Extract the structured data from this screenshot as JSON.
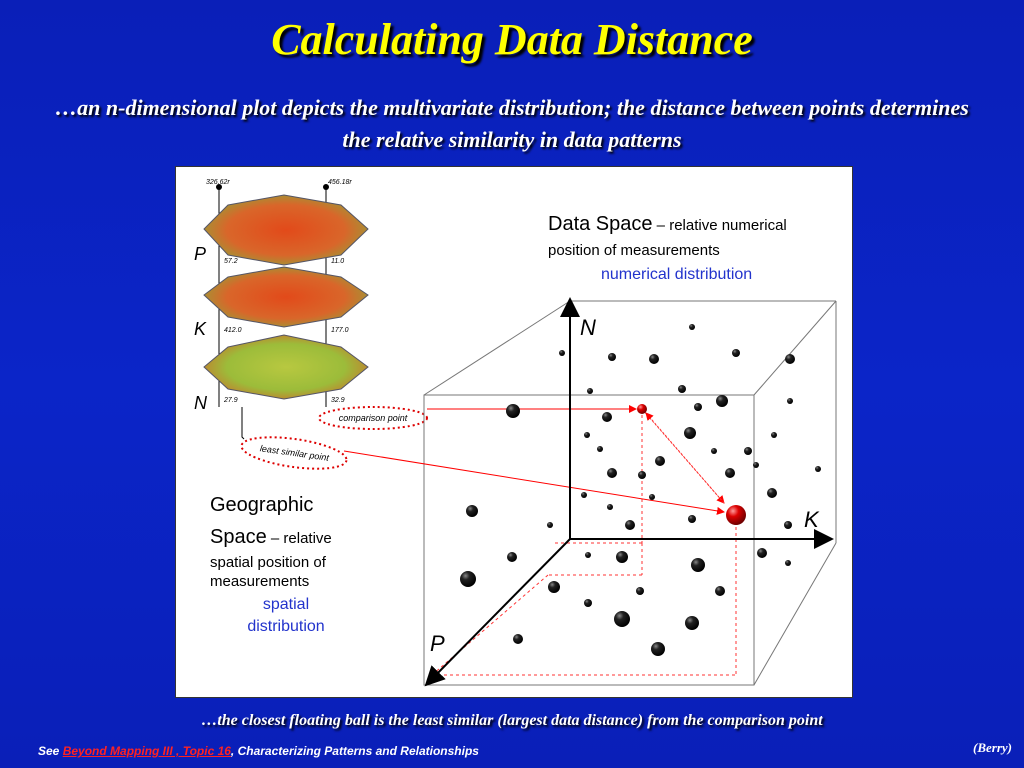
{
  "title": "Calculating Data Distance",
  "subtitle": "…an n-dimensional plot depicts the multivariate distribution; the distance between points determines the relative similarity in data patterns",
  "diagram": {
    "data_space_heading": "Data Space",
    "data_space_desc_1": " – relative numerical",
    "data_space_desc_2": "position of measurements",
    "numerical_distribution": "numerical distribution",
    "geo_heading_1": "Geographic",
    "geo_heading_2": "Space",
    "geo_desc_1": " – relative",
    "geo_desc_2": "spatial position of",
    "geo_desc_3": "measurements",
    "spatial_1": "spatial",
    "spatial_2": "distribution",
    "axis_n": "N",
    "axis_k": "K",
    "axis_p": "P",
    "layer_p": "P",
    "layer_k": "K",
    "layer_n": "N",
    "comparison_point": "comparison point",
    "least_similar_point": "least similar point",
    "values": {
      "p_left_top": "326.62r",
      "p_right_top": "456.18r",
      "p_left_bottom": "57.2",
      "p_right_bottom": "11.0",
      "k_left_bottom": "412.0",
      "k_right_bottom": "177.0",
      "n_left_bottom": "27.9",
      "n_right_bottom": "32.9"
    },
    "colors": {
      "axis": "#000000",
      "link_line": "#ff0000",
      "blue_label": "#2233cc",
      "ellipse": "#dd0000"
    }
  },
  "caption": "…the closest floating ball is the least similar (largest data distance) from the comparison point",
  "footer": {
    "prefix": "See ",
    "link": "Beyond Mapping III , Topic 16",
    "suffix": ", Characterizing Patterns and Relationships"
  },
  "credit": "(Berry)"
}
